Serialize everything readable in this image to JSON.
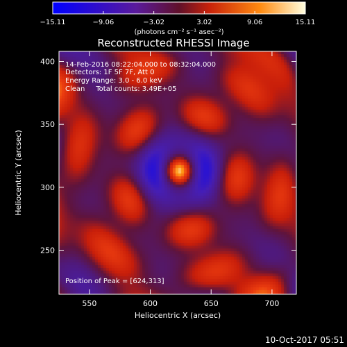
{
  "chart_data": {
    "type": "heatmap",
    "title": "Reconstructed RHESSI Image",
    "xlabel": "Heliocentric X (arcsec)",
    "ylabel": "Heliocentric Y (arcsec)",
    "xlim": [
      525,
      720
    ],
    "ylim": [
      215,
      408
    ],
    "x_ticks": [
      550,
      600,
      650,
      700
    ],
    "y_ticks": [
      250,
      300,
      350,
      400
    ],
    "colorbar": {
      "min": -15.11,
      "max": 15.11,
      "tick_labels": [
        "-15.11",
        "-9.06",
        "-3.02",
        "3.02",
        "9.06",
        "15.11"
      ],
      "units_label": "(photons cm⁻² s⁻¹ asec⁻²)",
      "colors": [
        "#0000ff",
        "#5a1a9c",
        "#50157a",
        "#c8220a",
        "#ff8a10",
        "#ffffe0"
      ]
    },
    "annotations": {
      "time_range": "14-Feb-2016 08:22:04.000 to 08:32:04.000",
      "detectors": "Detectors: 1F 5F 7F, Att 0",
      "energy": "Energy Range: 3.0 - 6.0 keV",
      "method": "Clean     Total counts: 3.49E+05",
      "peak": "Position of Peak = [624,313]"
    },
    "peak": {
      "x": 624,
      "y": 313,
      "value": 15.11
    },
    "grid": false
  },
  "footer": {
    "timestamp": "10-Oct-2017 05:51"
  }
}
